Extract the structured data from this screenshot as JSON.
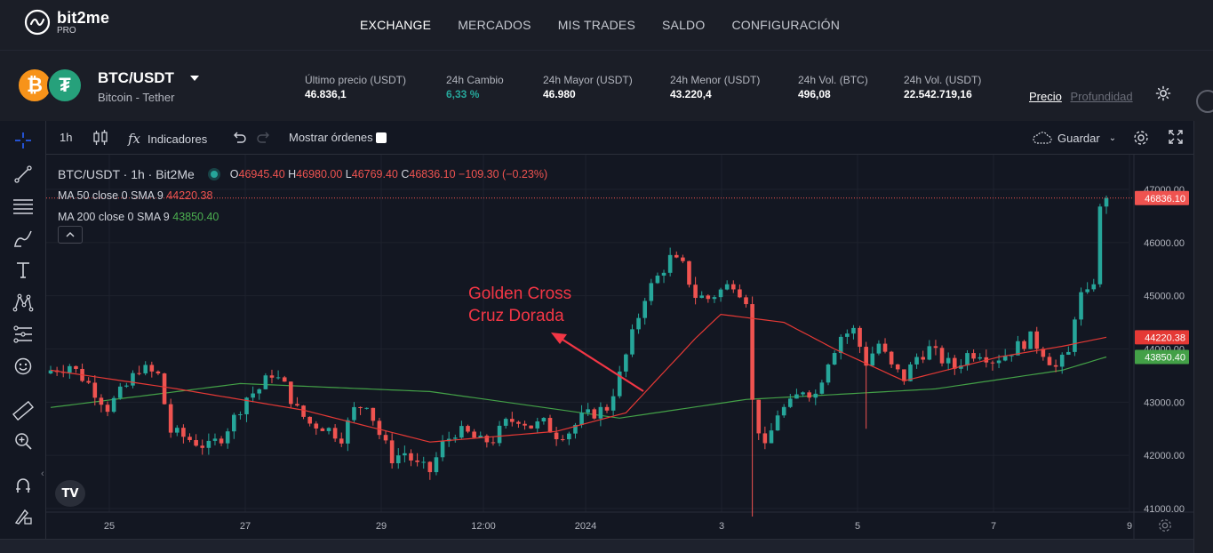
{
  "brand": {
    "name": "bit2me",
    "sub": "PRO"
  },
  "nav": [
    {
      "label": "EXCHANGE",
      "active": true
    },
    {
      "label": "MERCADOS",
      "active": false
    },
    {
      "label": "MIS TRADES",
      "active": false
    },
    {
      "label": "SALDO",
      "active": false
    },
    {
      "label": "CONFIGURACIÓN",
      "active": false
    }
  ],
  "pair": {
    "symbol": "BTC/USDT",
    "description": "Bitcoin - Tether"
  },
  "stats": [
    {
      "label": "Último precio (USDT)",
      "value": "46.836,1",
      "color": "#ffffff"
    },
    {
      "label": "24h Cambio",
      "value": "6,33 %",
      "color": "#26a69a"
    },
    {
      "label": "24h Mayor (USDT)",
      "value": "46.980",
      "color": "#ffffff"
    },
    {
      "label": "24h Menor (USDT)",
      "value": "43.220,4",
      "color": "#ffffff"
    },
    {
      "label": "24h Vol. (BTC)",
      "value": "496,08",
      "color": "#ffffff"
    },
    {
      "label": "24h Vol. (USDT)",
      "value": "22.542.719,16",
      "color": "#ffffff"
    }
  ],
  "view_tabs": {
    "price": "Precio",
    "depth": "Profundidad"
  },
  "toolbar": {
    "interval": "1h",
    "indicators": "Indicadores",
    "show_orders": "Mostrar órdenes",
    "save": "Guardar"
  },
  "legend": {
    "title": "BTC/USDT · 1h · Bit2Me",
    "o_label": "O",
    "o": "46945.40",
    "h_label": "H",
    "h": "46980.00",
    "l_label": "L",
    "l": "46769.40",
    "c_label": "C",
    "c": "46836.10",
    "change": "−109.30 (−0.23%)",
    "ma50_label": "MA 50 close 0 SMA 9",
    "ma50_value": "44220.38",
    "ma200_label": "MA 200 close 0 SMA 9",
    "ma200_value": "43850.40"
  },
  "annotation": {
    "line1": "Golden Cross",
    "line2": "Cruz Dorada"
  },
  "colors": {
    "up": "#26a69a",
    "down": "#ef5350",
    "ma50": "#e53935",
    "ma200": "#43a047",
    "annotation": "#f23645",
    "bg": "#131722",
    "panel": "#1b1e27",
    "accent_green": "#26a69a"
  },
  "tags": {
    "last_price": "46836.10",
    "ma50": "44220.38",
    "ma200": "43850.40"
  },
  "chart_data": {
    "type": "candlestick",
    "title": "BTC/USDT · 1h · Bit2Me",
    "yaxis_ticks": [
      "47000.00",
      "46000.00",
      "45000.00",
      "44000.00",
      "43000.00",
      "42000.00",
      "41000.00"
    ],
    "ylim": [
      40500,
      47400
    ],
    "xaxis_ticks": [
      "25",
      "27",
      "29",
      "12:00",
      "2024",
      "3",
      "5",
      "7",
      "9"
    ],
    "close_anchors": [
      [
        0,
        43600
      ],
      [
        3,
        43700
      ],
      [
        6,
        43350
      ],
      [
        9,
        42900
      ],
      [
        12,
        43300
      ],
      [
        14,
        43650
      ],
      [
        17,
        43500
      ],
      [
        19,
        42450
      ],
      [
        22,
        42300
      ],
      [
        25,
        42150
      ],
      [
        27,
        42350
      ],
      [
        29,
        42700
      ],
      [
        31,
        43100
      ],
      [
        33,
        43250
      ],
      [
        35,
        43550
      ],
      [
        37,
        43300
      ],
      [
        39,
        42850
      ],
      [
        41,
        42600
      ],
      [
        43,
        42550
      ],
      [
        46,
        42350
      ],
      [
        48,
        42850
      ],
      [
        50,
        43000
      ],
      [
        52,
        42400
      ],
      [
        54,
        41950
      ],
      [
        56,
        42050
      ],
      [
        58,
        41800
      ],
      [
        60,
        41700
      ],
      [
        62,
        42200
      ],
      [
        64,
        42450
      ],
      [
        66,
        42400
      ],
      [
        68,
        42250
      ],
      [
        70,
        42300
      ],
      [
        72,
        42600
      ],
      [
        74,
        42700
      ],
      [
        76,
        42550
      ],
      [
        78,
        42600
      ],
      [
        80,
        42400
      ],
      [
        82,
        42450
      ],
      [
        84,
        42700
      ],
      [
        86,
        42800
      ],
      [
        88,
        42900
      ],
      [
        90,
        43500
      ],
      [
        92,
        44250
      ],
      [
        94,
        45000
      ],
      [
        96,
        45350
      ],
      [
        98,
        45700
      ],
      [
        100,
        45550
      ],
      [
        102,
        45000
      ],
      [
        104,
        44950
      ],
      [
        106,
        45100
      ],
      [
        108,
        45250
      ],
      [
        110,
        44950
      ],
      [
        111,
        43000
      ],
      [
        112,
        42500
      ],
      [
        113,
        42100
      ],
      [
        115,
        42800
      ],
      [
        117,
        42950
      ],
      [
        119,
        43250
      ],
      [
        121,
        43150
      ],
      [
        123,
        43800
      ],
      [
        125,
        44250
      ],
      [
        127,
        44350
      ],
      [
        129,
        43750
      ],
      [
        131,
        44100
      ],
      [
        133,
        43650
      ],
      [
        135,
        43450
      ],
      [
        137,
        43850
      ],
      [
        139,
        44000
      ],
      [
        141,
        43800
      ],
      [
        143,
        43650
      ],
      [
        145,
        43900
      ],
      [
        147,
        43950
      ],
      [
        149,
        43800
      ],
      [
        151,
        43900
      ],
      [
        153,
        44050
      ],
      [
        155,
        44200
      ],
      [
        157,
        43950
      ],
      [
        159,
        43650
      ],
      [
        161,
        43900
      ],
      [
        162,
        44650
      ],
      [
        163,
        45000
      ],
      [
        164,
        45000
      ],
      [
        165,
        45300
      ],
      [
        166,
        46600
      ],
      [
        167,
        46850
      ]
    ],
    "ma200_anchors": [
      [
        0,
        42900
      ],
      [
        30,
        43350
      ],
      [
        60,
        43200
      ],
      [
        90,
        42700
      ],
      [
        110,
        43050
      ],
      [
        140,
        43250
      ],
      [
        160,
        43600
      ],
      [
        167,
        43850
      ]
    ],
    "ma50_anchors": [
      [
        0,
        43600
      ],
      [
        20,
        43250
      ],
      [
        40,
        42850
      ],
      [
        60,
        42250
      ],
      [
        80,
        42450
      ],
      [
        91,
        42800
      ],
      [
        102,
        44200
      ],
      [
        106,
        44650
      ],
      [
        116,
        44500
      ],
      [
        124,
        44000
      ],
      [
        135,
        43400
      ],
      [
        150,
        43850
      ],
      [
        160,
        44050
      ],
      [
        167,
        44220
      ]
    ],
    "last_close": 46836.1,
    "ma50_last": 44220.38,
    "ma200_last": 43850.4
  }
}
